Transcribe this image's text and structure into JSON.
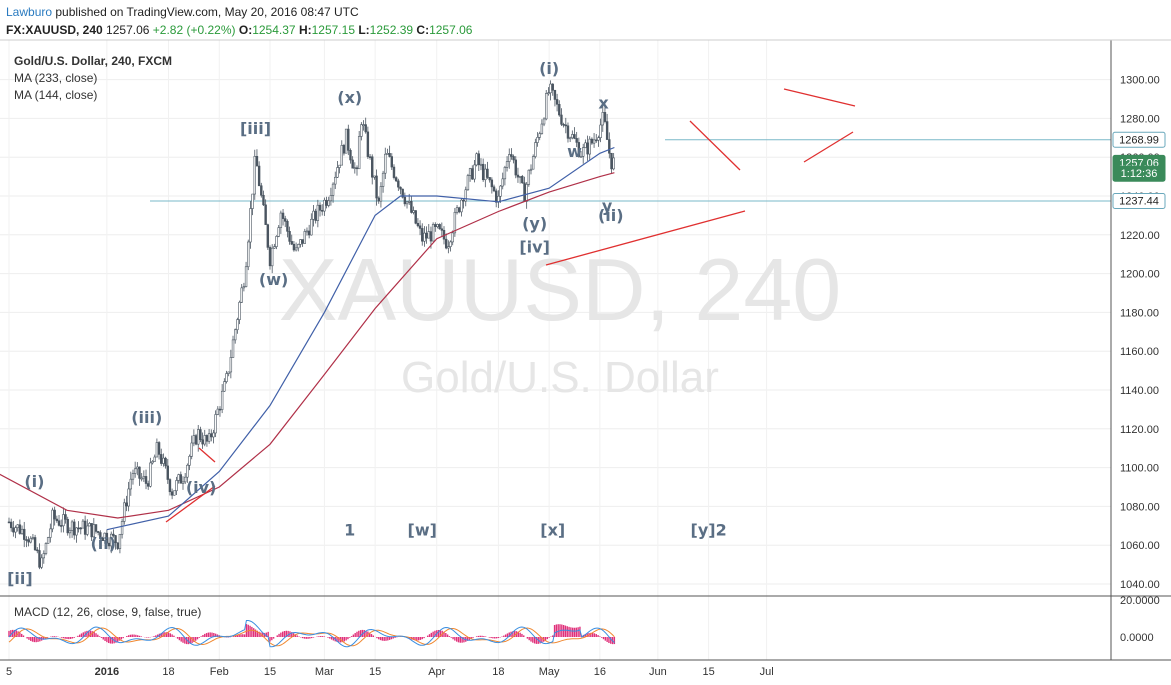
{
  "header": {
    "author": "Lawburo",
    "published_text": "published on TradingView.com, May 20, 2016 08:47 UTC",
    "symbol": "FX:XAUUSD, 240",
    "last": "1257.06",
    "change": "+2.82 (+0.22%)",
    "o_label": "O:",
    "o": "1254.37",
    "h_label": "H:",
    "h": "1257.15",
    "l_label": "L:",
    "l": "1252.39",
    "c_label": "C:",
    "c": "1257.06"
  },
  "legend": {
    "title": "Gold/U.S. Dollar, 240, FXCM",
    "ma1": "MA (233, close)",
    "ma2": "MA (144, close)"
  },
  "watermark": {
    "line1": "XAUUSD, 240",
    "line2": "Gold/U.S. Dollar"
  },
  "price_tags": [
    {
      "text": "1268.99",
      "value": 1268.99,
      "style": "outline"
    },
    {
      "text": "1257.06",
      "value": 1257.06,
      "style": "green"
    },
    {
      "text": "1:12:36",
      "value": 1251.5,
      "style": "green"
    },
    {
      "text": "1237.44",
      "value": 1237.44,
      "style": "outline"
    }
  ],
  "macd": {
    "label": "MACD (12, 26, close, 9, false, true)",
    "tick_top": "20.0000",
    "tick_zero": "0.0000"
  },
  "colors": {
    "candle": "#4a5560",
    "ma233": "#b03048",
    "ma144": "#4060a8",
    "hline": "#7ab8c8",
    "trend": "#e03030",
    "macd": "#3a8ee0",
    "signal": "#f08830",
    "hist": "#e0307a"
  },
  "chart_data": {
    "type": "candlestick",
    "title": "Gold/U.S. Dollar, 240, FXCM",
    "y_axis": {
      "min": 1040,
      "max": 1300,
      "ticks": [
        "1040.00",
        "1060.00",
        "1080.00",
        "1100.00",
        "1120.00",
        "1140.00",
        "1160.00",
        "1180.00",
        "1200.00",
        "1220.00",
        "1240.00",
        "1260.00",
        "1280.00",
        "1300.00"
      ]
    },
    "x_axis": {
      "ticks": [
        "5",
        "2016",
        "18",
        "Feb",
        "15",
        "Mar",
        "15",
        "Apr",
        "18",
        "May",
        "16",
        "Jun",
        "15",
        "Jul"
      ]
    },
    "price_path": [
      [
        "2015-12-05",
        1072
      ],
      [
        "2015-12-10",
        1066
      ],
      [
        "2015-12-14",
        1050
      ],
      [
        "2015-12-17",
        1074
      ],
      [
        "2015-12-22",
        1070
      ],
      [
        "2015-12-28",
        1068
      ],
      [
        "2016-01-04",
        1062
      ],
      [
        "2016-01-08",
        1098
      ],
      [
        "2016-01-12",
        1092
      ],
      [
        "2016-01-15",
        1110
      ],
      [
        "2016-01-19",
        1088
      ],
      [
        "2016-01-22",
        1096
      ],
      [
        "2016-01-26",
        1118
      ],
      [
        "2016-01-29",
        1112
      ],
      [
        "2016-02-03",
        1145
      ],
      [
        "2016-02-08",
        1200
      ],
      [
        "2016-02-11",
        1260
      ],
      [
        "2016-02-15",
        1208
      ],
      [
        "2016-02-18",
        1232
      ],
      [
        "2016-02-22",
        1210
      ],
      [
        "2016-02-26",
        1225
      ],
      [
        "2016-03-02",
        1240
      ],
      [
        "2016-03-07",
        1270
      ],
      [
        "2016-03-10",
        1250
      ],
      [
        "2016-03-11",
        1282
      ],
      [
        "2016-03-16",
        1235
      ],
      [
        "2016-03-18",
        1262
      ],
      [
        "2016-03-22",
        1245
      ],
      [
        "2016-03-28",
        1218
      ],
      [
        "2016-04-01",
        1222
      ],
      [
        "2016-04-04",
        1216
      ],
      [
        "2016-04-08",
        1240
      ],
      [
        "2016-04-12",
        1258
      ],
      [
        "2016-04-18",
        1238
      ],
      [
        "2016-04-21",
        1265
      ],
      [
        "2016-04-25",
        1240
      ],
      [
        "2016-05-02",
        1295
      ],
      [
        "2016-05-06",
        1278
      ],
      [
        "2016-05-11",
        1262
      ],
      [
        "2016-05-14",
        1268
      ],
      [
        "2016-05-17",
        1280
      ],
      [
        "2016-05-19",
        1258
      ],
      [
        "2016-05-20",
        1257
      ]
    ],
    "series": [
      {
        "name": "MA (233, close)",
        "values": [
          [
            "2015-12-01",
            1098
          ],
          [
            "2015-12-21",
            1078
          ],
          [
            "2016-01-04",
            1074
          ],
          [
            "2016-01-18",
            1078
          ],
          [
            "2016-02-01",
            1090
          ],
          [
            "2016-02-15",
            1112
          ],
          [
            "2016-03-01",
            1148
          ],
          [
            "2016-03-15",
            1182
          ],
          [
            "2016-04-01",
            1218
          ],
          [
            "2016-04-18",
            1232
          ],
          [
            "2016-05-02",
            1242
          ],
          [
            "2016-05-16",
            1250
          ],
          [
            "2016-05-20",
            1252
          ]
        ]
      },
      {
        "name": "MA (144, close)",
        "values": [
          [
            "2016-01-01",
            1068
          ],
          [
            "2016-01-18",
            1075
          ],
          [
            "2016-02-01",
            1098
          ],
          [
            "2016-02-15",
            1132
          ],
          [
            "2016-03-01",
            1180
          ],
          [
            "2016-03-15",
            1230
          ],
          [
            "2016-03-22",
            1240
          ],
          [
            "2016-04-01",
            1240
          ],
          [
            "2016-04-18",
            1237
          ],
          [
            "2016-05-02",
            1244
          ],
          [
            "2016-05-16",
            1262
          ],
          [
            "2016-05-20",
            1265
          ]
        ]
      }
    ],
    "hlines": [
      1268.99,
      1237.44
    ],
    "annotations": [
      {
        "text": "[ii]",
        "date": "2015-12-08",
        "price": 1040
      },
      {
        "text": "(i)",
        "date": "2015-12-12",
        "price": 1090
      },
      {
        "text": "(ii)",
        "date": "2015-12-31",
        "price": 1058
      },
      {
        "text": "(iii)",
        "date": "2016-01-12",
        "price": 1123
      },
      {
        "text": "(iv)",
        "date": "2016-01-27",
        "price": 1087
      },
      {
        "text": "[iii]",
        "date": "2016-02-11",
        "price": 1272
      },
      {
        "text": "(w)",
        "date": "2016-02-16",
        "price": 1194
      },
      {
        "text": "(x)",
        "date": "2016-03-08",
        "price": 1288
      },
      {
        "text": "1",
        "date": "2016-03-08",
        "price": 1065
      },
      {
        "text": "[w]",
        "date": "2016-03-28",
        "price": 1065
      },
      {
        "text": "(y)",
        "date": "2016-04-28",
        "price": 1223
      },
      {
        "text": "[iv]",
        "date": "2016-04-28",
        "price": 1211
      },
      {
        "text": "(i)",
        "date": "2016-05-02",
        "price": 1303
      },
      {
        "text": "[x]",
        "date": "2016-05-03",
        "price": 1065
      },
      {
        "text": "w",
        "date": "2016-05-09",
        "price": 1260
      },
      {
        "text": "x",
        "date": "2016-05-17",
        "price": 1285
      },
      {
        "text": "y",
        "date": "2016-05-18",
        "price": 1232
      },
      {
        "text": "(ii)",
        "date": "2016-05-19",
        "price": 1227
      },
      {
        "text": "[y]2",
        "date": "2016-06-15",
        "price": 1065
      }
    ],
    "grid": true
  }
}
